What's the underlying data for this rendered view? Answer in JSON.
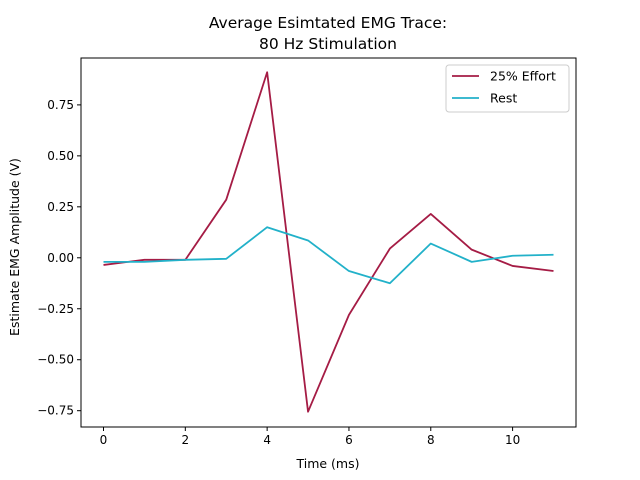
{
  "chart_data": {
    "type": "line",
    "title_lines": [
      "Average Esimtated EMG Trace:",
      "80 Hz Stimulation"
    ],
    "xlabel": "Time (ms)",
    "ylabel": "Estimate EMG Amplitude (V)",
    "x": [
      0,
      1,
      2,
      3,
      4,
      5,
      6,
      7,
      8,
      9,
      10,
      11
    ],
    "xlim": [
      -0.55,
      11.55
    ],
    "ylim": [
      -0.83,
      0.98
    ],
    "xticks": [
      0,
      2,
      4,
      6,
      8,
      10
    ],
    "xtick_labels": [
      "0",
      "2",
      "4",
      "6",
      "8",
      "10"
    ],
    "yticks": [
      -0.75,
      -0.5,
      -0.25,
      0.0,
      0.25,
      0.5,
      0.75
    ],
    "ytick_labels": [
      "−0.75",
      "−0.50",
      "−0.25",
      "0.00",
      "0.25",
      "0.50",
      "0.75"
    ],
    "grid": false,
    "legend_position": "upper right",
    "series": [
      {
        "name": "25% Effort",
        "color": "#a51c45",
        "values": [
          -0.035,
          -0.01,
          -0.01,
          0.285,
          0.91,
          -0.755,
          -0.28,
          0.045,
          0.215,
          0.04,
          -0.04,
          -0.065
        ]
      },
      {
        "name": "Rest",
        "color": "#22b1c9",
        "values": [
          -0.02,
          -0.02,
          -0.01,
          -0.005,
          0.15,
          0.085,
          -0.065,
          -0.125,
          0.07,
          -0.02,
          0.01,
          0.015
        ]
      }
    ]
  }
}
